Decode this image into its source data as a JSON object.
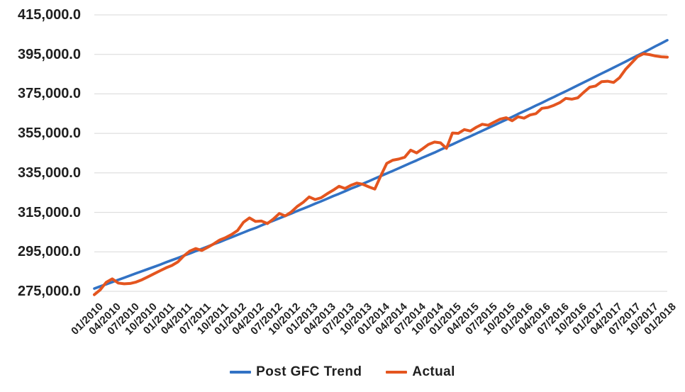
{
  "chart_data": {
    "type": "line",
    "title": "",
    "xlabel": "",
    "ylabel": "",
    "grid": "horizontal",
    "legend_position": "bottom",
    "gridline_color": "#d8d8d8",
    "x": [
      "01/2010",
      "02/2010",
      "03/2010",
      "04/2010",
      "05/2010",
      "06/2010",
      "07/2010",
      "08/2010",
      "09/2010",
      "10/2010",
      "11/2010",
      "12/2010",
      "01/2011",
      "02/2011",
      "03/2011",
      "04/2011",
      "05/2011",
      "06/2011",
      "07/2011",
      "08/2011",
      "09/2011",
      "10/2011",
      "11/2011",
      "12/2011",
      "01/2012",
      "02/2012",
      "03/2012",
      "04/2012",
      "05/2012",
      "06/2012",
      "07/2012",
      "08/2012",
      "09/2012",
      "10/2012",
      "11/2012",
      "12/2012",
      "01/2013",
      "02/2013",
      "03/2013",
      "04/2013",
      "05/2013",
      "06/2013",
      "07/2013",
      "08/2013",
      "09/2013",
      "10/2013",
      "11/2013",
      "12/2013",
      "01/2014",
      "02/2014",
      "03/2014",
      "04/2014",
      "05/2014",
      "06/2014",
      "07/2014",
      "08/2014",
      "09/2014",
      "10/2014",
      "11/2014",
      "12/2014",
      "01/2015",
      "02/2015",
      "03/2015",
      "04/2015",
      "05/2015",
      "06/2015",
      "07/2015",
      "08/2015",
      "09/2015",
      "10/2015",
      "11/2015",
      "12/2015",
      "01/2016",
      "02/2016",
      "03/2016",
      "04/2016",
      "05/2016",
      "06/2016",
      "07/2016",
      "08/2016",
      "09/2016",
      "10/2016",
      "11/2016",
      "12/2016",
      "01/2017",
      "02/2017",
      "03/2017",
      "04/2017",
      "05/2017",
      "06/2017",
      "07/2017",
      "08/2017",
      "09/2017",
      "10/2017",
      "11/2017",
      "12/2017",
      "01/2018"
    ],
    "x_tick_labels": [
      "01/2010",
      "04/2010",
      "07/2010",
      "10/2010",
      "01/2011",
      "04/2011",
      "07/2011",
      "10/2011",
      "01/2012",
      "04/2012",
      "07/2012",
      "10/2012",
      "01/2013",
      "04/2013",
      "07/2013",
      "10/2013",
      "01/2014",
      "04/2014",
      "07/2014",
      "10/2014",
      "01/2015",
      "04/2015",
      "07/2015",
      "10/2015",
      "01/2016",
      "04/2016",
      "07/2016",
      "10/2016",
      "01/2017",
      "04/2017",
      "07/2017",
      "10/2017",
      "01/2018"
    ],
    "y_axis": {
      "min": 275000,
      "max": 415000,
      "step": 20000,
      "tick_labels": [
        "275,000.0",
        "295,000.0",
        "315,000.0",
        "335,000.0",
        "355,000.0",
        "375,000.0",
        "395,000.0",
        "415,000.0"
      ]
    },
    "series": [
      {
        "name": "Post GFC Trend",
        "color": "#3272c4",
        "values": [
          276400,
          277500,
          278600,
          279700,
          280800,
          281900,
          283000,
          284100,
          285200,
          286300,
          287400,
          288500,
          289700,
          290800,
          291900,
          293100,
          294200,
          295400,
          296500,
          297700,
          298900,
          300000,
          301200,
          302400,
          303600,
          304800,
          306000,
          307100,
          308400,
          309600,
          310800,
          312000,
          313200,
          314400,
          315700,
          316900,
          318100,
          319400,
          320600,
          321900,
          323200,
          324400,
          325700,
          327000,
          328200,
          329500,
          330800,
          332100,
          333400,
          334700,
          336000,
          337300,
          338700,
          340000,
          341300,
          342700,
          344000,
          345300,
          346700,
          348100,
          349400,
          350800,
          352200,
          353500,
          354900,
          356300,
          357700,
          359100,
          360500,
          361900,
          363300,
          364800,
          366200,
          367600,
          369100,
          370500,
          372000,
          373400,
          374900,
          376300,
          377800,
          379300,
          380800,
          382300,
          383800,
          385300,
          386800,
          388300,
          389800,
          391300,
          392900,
          394400,
          395900,
          397500,
          399100,
          400600,
          402200
        ]
      },
      {
        "name": "Actual",
        "color": "#e4551f",
        "values": [
          273300,
          275800,
          279600,
          281300,
          279200,
          278800,
          279000,
          279700,
          280900,
          282400,
          283900,
          285400,
          286900,
          288100,
          289900,
          293000,
          295400,
          296700,
          295700,
          297300,
          299000,
          301000,
          302200,
          303800,
          305800,
          310000,
          312200,
          310400,
          310600,
          309300,
          311600,
          314400,
          313200,
          315200,
          318000,
          320100,
          322800,
          321500,
          322400,
          324400,
          326200,
          328200,
          327100,
          328700,
          329800,
          329200,
          327900,
          326800,
          333500,
          339800,
          341400,
          342000,
          342900,
          346500,
          345100,
          347200,
          349400,
          350600,
          350200,
          347400,
          355200,
          355000,
          356900,
          356200,
          358100,
          359600,
          359100,
          360700,
          362200,
          362900,
          361400,
          363400,
          362700,
          364300,
          365000,
          367700,
          368100,
          369200,
          370600,
          372700,
          372300,
          373000,
          375800,
          378400,
          379000,
          381200,
          381400,
          380800,
          383200,
          387400,
          390600,
          393800,
          395300,
          394900,
          394200,
          393800,
          393600
        ]
      }
    ]
  },
  "legend": {
    "items": [
      {
        "label": "Post GFC Trend",
        "color": "#3272c4"
      },
      {
        "label": "Actual",
        "color": "#e4551f"
      }
    ]
  }
}
